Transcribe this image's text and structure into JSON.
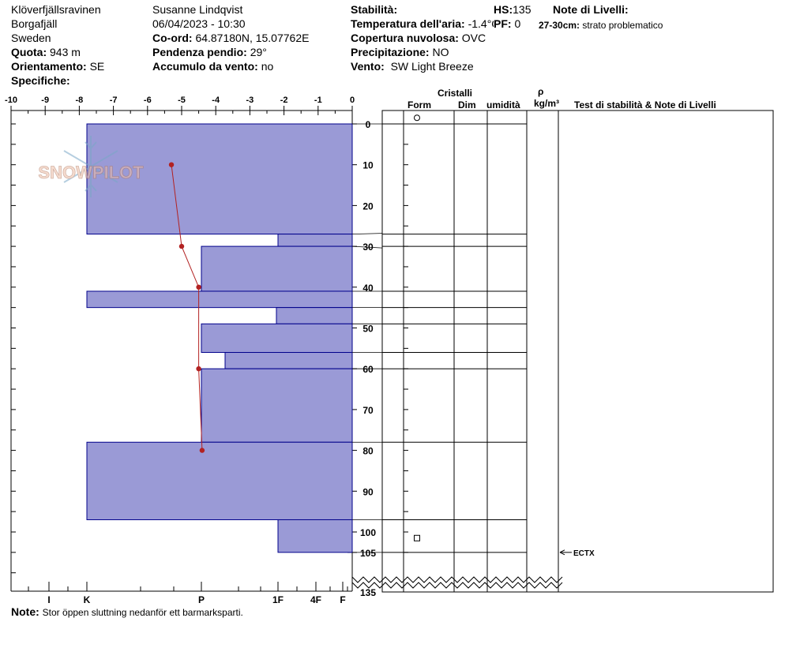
{
  "header": {
    "location": "Klöverfjällsravinen",
    "region": "Borgafjäll",
    "country": "Sweden",
    "elevation_label": "Quota:",
    "elevation_value": "943 m",
    "aspect_label": "Orientamento:",
    "aspect_value": "SE",
    "specifics_label": "Specifiche:",
    "observer": "Susanne Lindqvist",
    "datetime": "06/04/2023 - 10:30",
    "coord_label": "Co-ord:",
    "coord_value": "64.87180N, 15.07762E",
    "slope_label": "Pendenza pendio:",
    "slope_value": "29°",
    "wind_loading_label": "Accumulo da vento:",
    "wind_loading_value": "no",
    "stability_label": "Stabilità:",
    "air_temp_label": "Temperatura dell'aria:",
    "air_temp_value": "-1.4°C",
    "cloud_label": "Copertura nuvolosa:",
    "cloud_value": "OVC",
    "precip_label": "Precipitazione:",
    "precip_value": "NO",
    "wind_label": "Vento:",
    "wind_value": "SW Light Breeze",
    "hs_label": "HS:",
    "hs_value": "135",
    "pf_label": "PF:",
    "pf_value": "0",
    "layer_notes_label": "Note di Livelli:",
    "layer_note_depth": "27-30cm:",
    "layer_note_text": "strato problematico"
  },
  "logo_text": "SNOWPILOT",
  "columns": {
    "crystals": "Cristalli",
    "form": "Form",
    "size": "Dim",
    "moisture": "umidità",
    "rho": "ρ",
    "density_unit": "kg/m³",
    "tests": "Test di stabilità & Note di Livelli"
  },
  "test_result": "ECTX",
  "note_label": "Note:",
  "note_text": "Stor öppen sluttning nedanför ett barmarksparti.",
  "colors": {
    "hardness_fill": "#9a9ad6",
    "hardness_stroke": "#00008b",
    "temperature": "#b22222"
  },
  "chart_data": {
    "type": "snow_profile",
    "temp_axis": {
      "ticks": [
        -10,
        -9,
        -8,
        -7,
        -6,
        -5,
        -4,
        -3,
        -2,
        -1,
        0
      ]
    },
    "depth_axis": {
      "ticks": [
        0,
        10,
        20,
        30,
        40,
        50,
        60,
        70,
        80,
        90,
        100,
        105
      ],
      "break_label": "135"
    },
    "hardness_axis": {
      "ticks": [
        "I",
        "K",
        "P",
        "1F",
        "4F",
        "F"
      ]
    },
    "hardness_profile": [
      {
        "top": 0,
        "bottom": 27,
        "hardness": "K"
      },
      {
        "top": 27,
        "bottom": 30,
        "hardness": "1F"
      },
      {
        "top": 30,
        "bottom": 41,
        "hardness": "P"
      },
      {
        "top": 41,
        "bottom": 45,
        "hardness": "K"
      },
      {
        "top": 45,
        "bottom": 49,
        "hardness": "1F+"
      },
      {
        "top": 49,
        "bottom": 56,
        "hardness": "P"
      },
      {
        "top": 56,
        "bottom": 60,
        "hardness": "P-"
      },
      {
        "top": 60,
        "bottom": 78,
        "hardness": "P"
      },
      {
        "top": 78,
        "bottom": 97,
        "hardness": "K"
      },
      {
        "top": 97,
        "bottom": 105,
        "hardness": "1F"
      }
    ],
    "temperature_profile": [
      {
        "depth": 10,
        "temp": -5.3
      },
      {
        "depth": 30,
        "temp": -5.0
      },
      {
        "depth": 40,
        "temp": -4.5
      },
      {
        "depth": 60,
        "temp": -4.5
      },
      {
        "depth": 80,
        "temp": -4.4
      }
    ],
    "grain_forms": [
      {
        "depth": -1.5,
        "form": "round"
      },
      {
        "depth": 101.5,
        "form": "square"
      }
    ],
    "test_depth": 105
  }
}
